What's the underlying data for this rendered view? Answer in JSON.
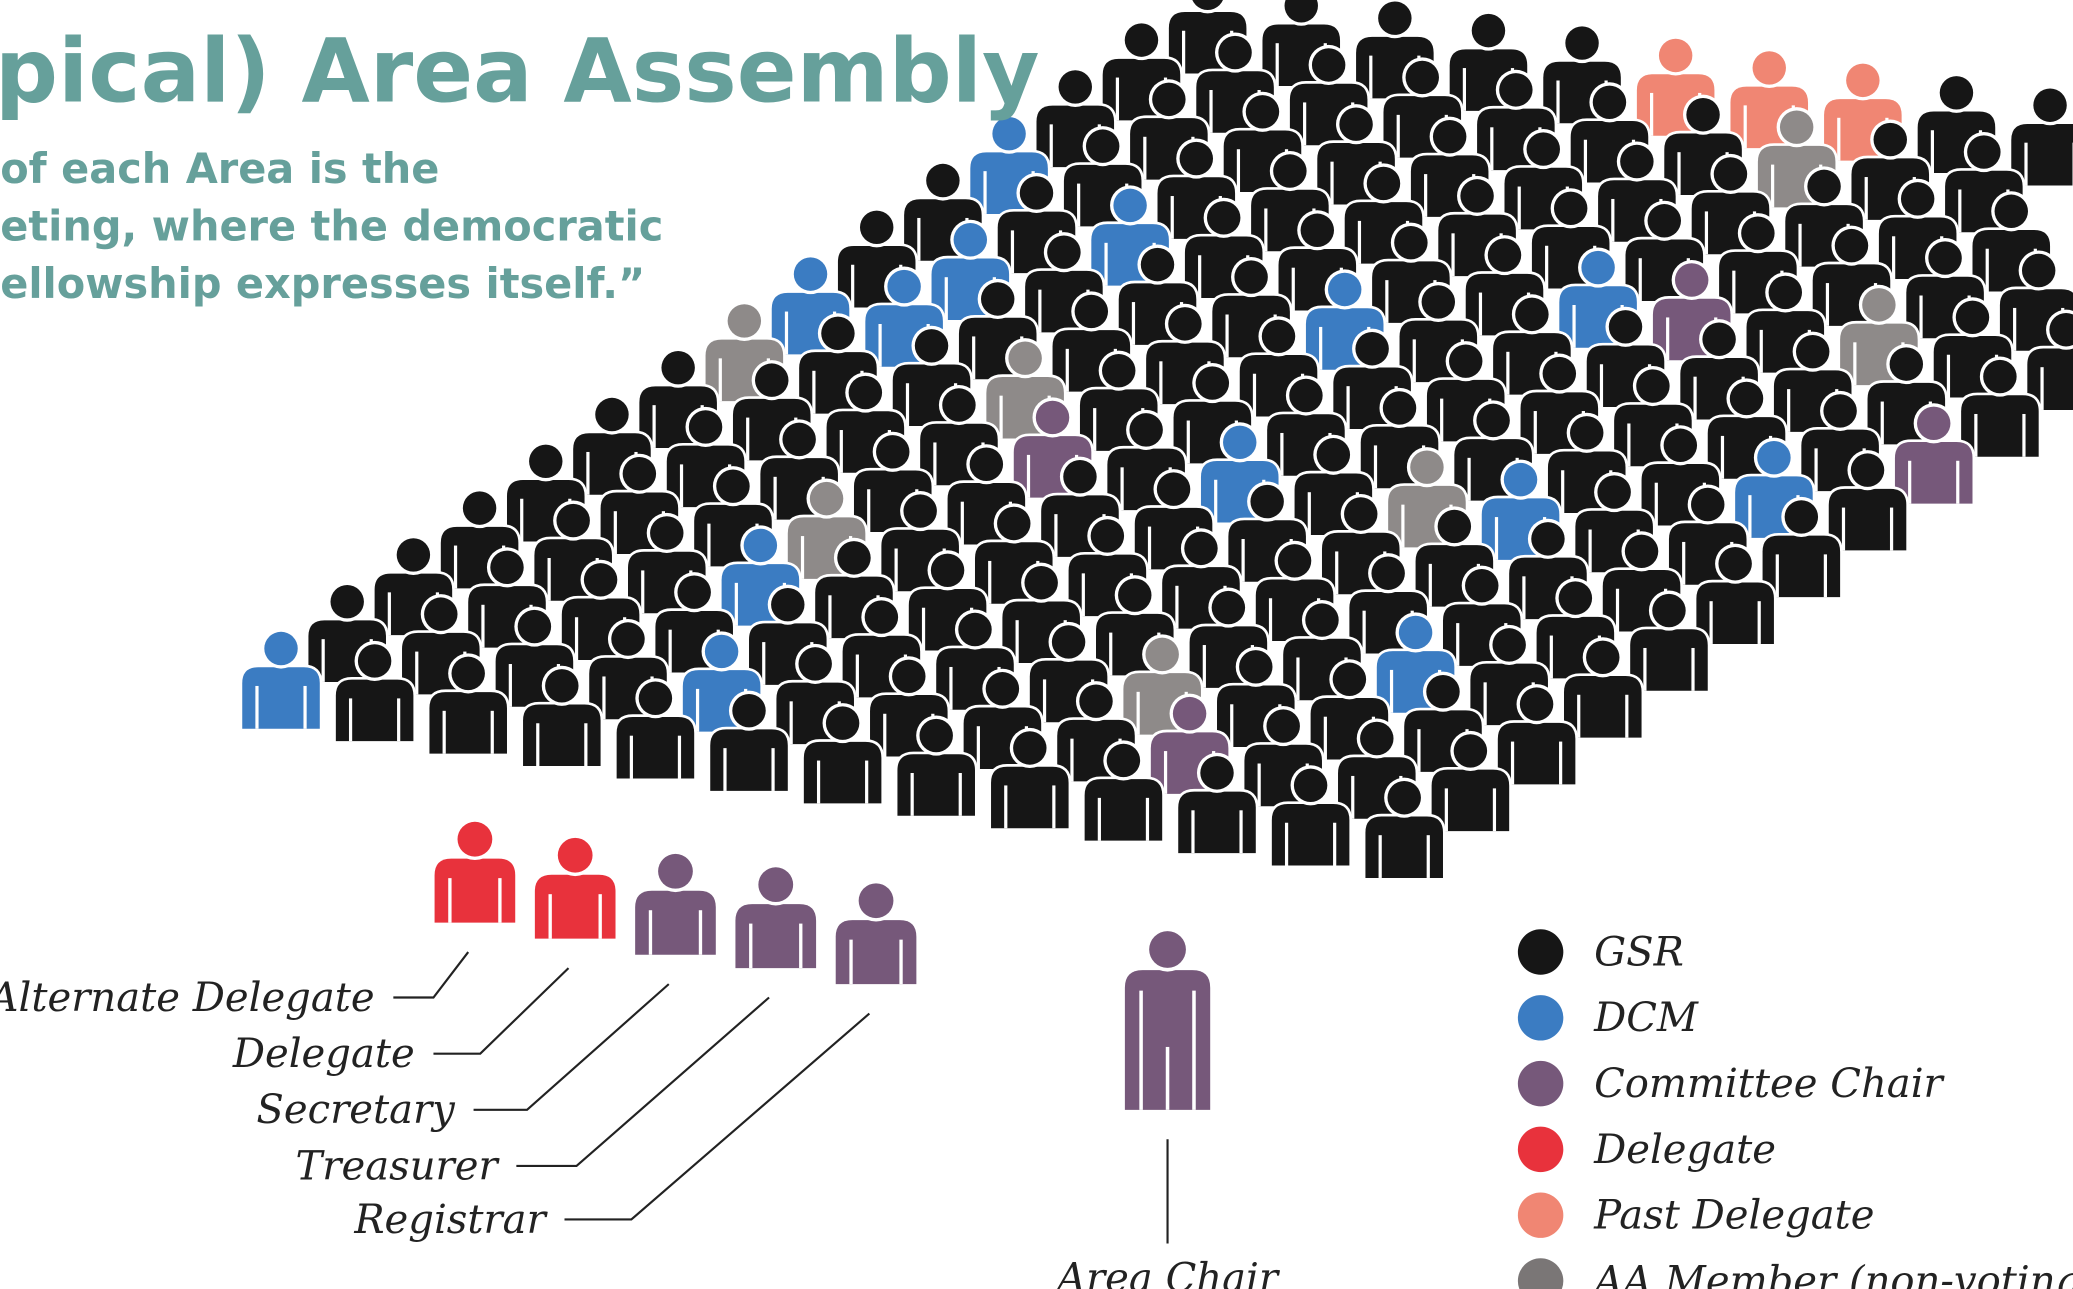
{
  "title": "pical) Area Assembly",
  "quote": [
    "of each Area is the",
    "eting, where the democratic",
    "ellowship expresses itself.”"
  ],
  "officers": [
    {
      "label": "Alternate Delegate",
      "color": "#e8323c"
    },
    {
      "label": "Delegate",
      "color": "#e8323c"
    },
    {
      "label": "Secretary",
      "color": "#76587a"
    },
    {
      "label": "Treasurer",
      "color": "#76587a"
    },
    {
      "label": "Registrar",
      "color": "#76587a"
    }
  ],
  "area_chair": "Area Chair",
  "legend": [
    {
      "label": "GSR",
      "color": "#161616"
    },
    {
      "label": "DCM",
      "color": "#3b7cc2"
    },
    {
      "label": "Committee Chair",
      "color": "#76587a"
    },
    {
      "label": "Delegate",
      "color": "#e8323c"
    },
    {
      "label": "Past Delegate",
      "color": "#f08673"
    },
    {
      "label": "AA Member (non-voting)",
      "color": "#7a7676"
    }
  ]
}
